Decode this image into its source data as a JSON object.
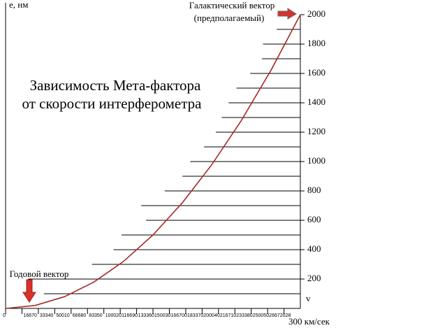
{
  "chart_data": {
    "type": "line",
    "title": [
      "Зависимость Мета-фактора",
      "от скорости интерферометра"
    ],
    "y_label": "е, нм",
    "x_label": "300 км/сек",
    "x_marker": "v",
    "annotations": {
      "galactic": [
        "Галактический вектор",
        "(предполагаемый)"
      ],
      "annual": "Годовой вектор"
    },
    "x": [
      0,
      30000,
      60000,
      90000,
      120000,
      150000,
      180000,
      210000,
      240000,
      270000,
      300000
    ],
    "series": [
      {
        "name": "Мета-фактор",
        "color": "#a52a2a",
        "values": [
          0,
          20,
          80,
          180,
          320,
          500,
          720,
          980,
          1280,
          1620,
          2000
        ]
      }
    ],
    "levels": {
      "y": [
        100,
        200,
        300,
        400,
        500,
        600,
        700,
        800,
        900,
        1000,
        1100,
        1200,
        1300,
        1400,
        1500,
        1600,
        1700,
        1800,
        1900
      ],
      "x_start": [
        39000,
        23000,
        88000,
        110000,
        118000,
        143000,
        138000,
        162000,
        180000,
        188000,
        202000,
        214000,
        220000,
        227000,
        235000,
        249000,
        261000,
        262000,
        276000
      ]
    },
    "xlim": [
      0,
      300000
    ],
    "ylim": [
      0,
      2000
    ],
    "yticks": [
      200,
      400,
      600,
      800,
      1000,
      1200,
      1400,
      1600,
      1800,
      2000
    ],
    "xticks": [
      0,
      16670,
      33340,
      50010,
      66680,
      83350,
      100020,
      116690,
      133360,
      150030,
      166700,
      183370,
      200040,
      216710,
      233380,
      250050,
      266720,
      {
        "value": 283390,
        "label": "28"
      }
    ]
  }
}
